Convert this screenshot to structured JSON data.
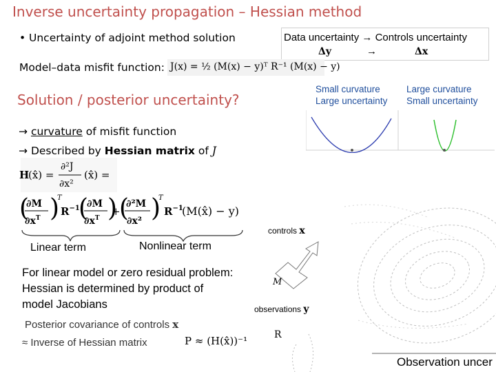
{
  "title": "Inverse uncertainty propagation – Hessian method",
  "bullet": "Uncertainty of adjoint method solution",
  "data_uncertainty": {
    "text_left": "Data uncertainty",
    "arrow": "→",
    "text_right": "Controls uncertainty",
    "sym_y": "Δy",
    "sym_x": "Δx"
  },
  "model_misfit_label": "Model–data misfit function:",
  "misfit_formula": "J(x) = ½ (M(x) − y)ᵀ R⁻¹ (M(x) − y)",
  "posterior_question": "Solution / posterior uncertainty?",
  "curvature": {
    "small_line1": "Small curvature",
    "small_line2": "Large uncertainty",
    "large_line1": "Large curvature",
    "large_line2": "Small uncertainty"
  },
  "arrow_curvature": {
    "arrow": "→",
    "underlined": "curvature",
    "rest": "of misfit function"
  },
  "arrow_hessian": {
    "arrow": "→",
    "prefix": "Described by",
    "bold": "Hessian matrix",
    "of": "of",
    "J": "J"
  },
  "hessian_formula": "H(x̂) = ∂²J/∂x² (x̂) =",
  "hessian_expansion": {
    "dM": "∂M",
    "dxT": "∂xᵀ",
    "T": "T",
    "Rinv": "R⁻¹",
    "dx": "∂x",
    "plus": "+",
    "d2M": "∂²M",
    "dx2": "∂x²",
    "residual": "(M(x̂) − y)"
  },
  "linear_term": "Linear term",
  "nonlinear_term": "Nonlinear term",
  "paragraph": [
    "For linear model or zero residual problem:",
    "Hessian is determined by product of",
    "model Jacobians"
  ],
  "posterior_cov_line1": "Posterior covariance of controls",
  "posterior_cov_x": "x",
  "posterior_cov_line2": "≈ Inverse of Hessian matrix",
  "p_formula": "P ≈ (H(x̂))⁻¹",
  "diagram": {
    "controls_label": "controls",
    "controls_sym": "x",
    "M_label": "M",
    "observations_label": "observations",
    "observations_sym": "y",
    "R_label": "R"
  },
  "obs_uncertainty": "Observation uncer",
  "colors": {
    "title": "#c0504d",
    "curve_small": "#2f3fb0",
    "curve_large": "#2fc02f"
  }
}
